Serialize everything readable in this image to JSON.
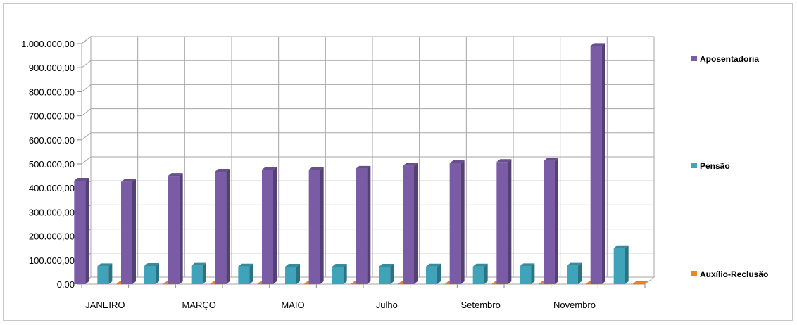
{
  "chart_data": {
    "type": "bar",
    "title": "",
    "xlabel": "",
    "ylabel": "",
    "ylim": [
      0,
      1000000
    ],
    "ytick_step": 100000,
    "ytick_labels": [
      "0,00",
      "100.000,00",
      "200.000,00",
      "300.000,00",
      "400.000,00",
      "500.000,00",
      "600.000,00",
      "700.000,00",
      "800.000,00",
      "900.000,00",
      "1.000.000,00"
    ],
    "categories": [
      "JANEIRO",
      "",
      "MARÇO",
      "",
      "MAIO",
      "",
      "Julho",
      "",
      "Setembro",
      "",
      "Novembro",
      ""
    ],
    "visible_category_labels": [
      "JANEIRO",
      "MARÇO",
      "MAIO",
      "Julho",
      "Setembro",
      "Novembro"
    ],
    "grid": true,
    "legend_position": "right",
    "series": [
      {
        "name": "Aposentadoria",
        "color": "#7a5ca6",
        "values": [
          430000,
          425000,
          450000,
          468000,
          476000,
          476000,
          480000,
          492000,
          503000,
          508000,
          512000,
          990000
        ]
      },
      {
        "name": "Pensão",
        "color": "#3fa3b9",
        "values": [
          75000,
          76000,
          77000,
          74000,
          73000,
          73000,
          73000,
          74000,
          74000,
          75000,
          77000,
          150000
        ]
      },
      {
        "name": "Auxílio-Reclusão",
        "color": "#e8862c",
        "values": [
          1500,
          1500,
          1500,
          1500,
          1500,
          1500,
          1500,
          1500,
          1500,
          1500,
          1500,
          1500
        ]
      }
    ]
  }
}
